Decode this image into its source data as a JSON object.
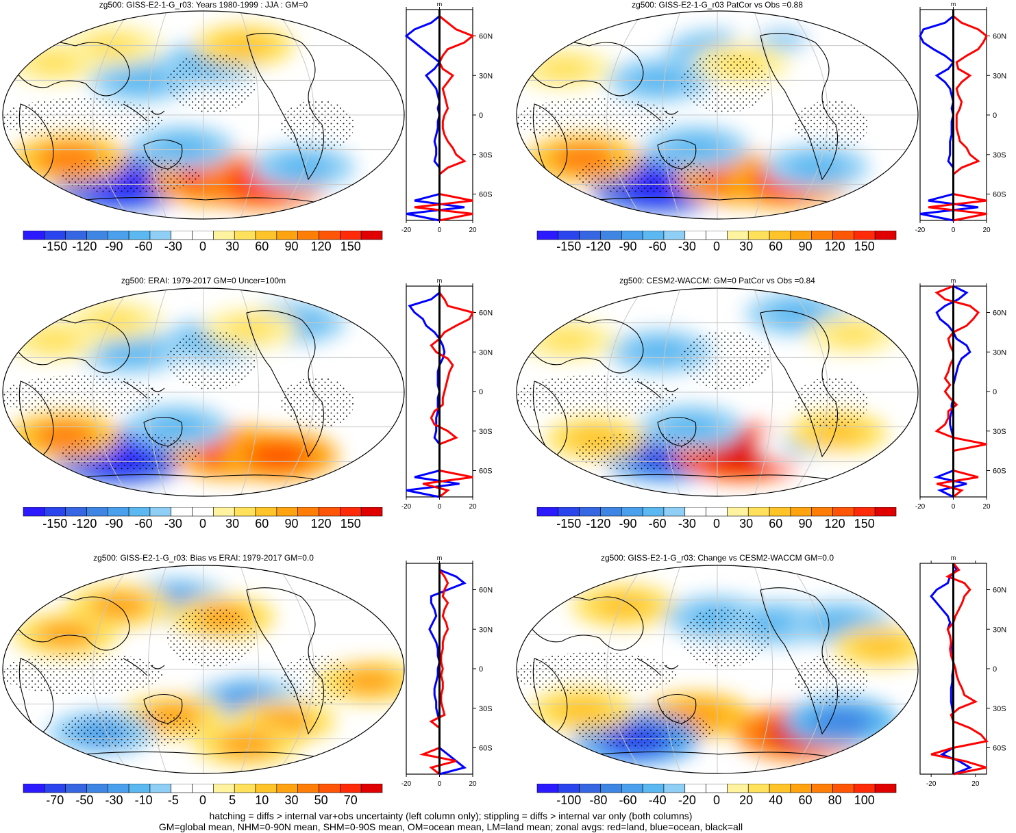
{
  "footer": {
    "line1": "hatching = diffs > internal var+obs uncertainty (left column only); stippling = diffs > internal var only (both columns)",
    "line2": "GM=global mean, NHM=0-90N mean, SHM=0-90S mean, OM=ocean mean, LM=land mean; zonal avgs: red=land, blue=ocean, black=all"
  },
  "colors": {
    "land": "#ff0000",
    "ocean": "#0000ff",
    "all": "#000000",
    "scale": [
      "#2b1aff",
      "#2a44ee",
      "#3766e2",
      "#3f86e4",
      "#4aa0ec",
      "#5bb8f1",
      "#8fcff5",
      "#ffffff",
      "#ffffff",
      "#fff3a0",
      "#ffe15c",
      "#ffc42a",
      "#ffa310",
      "#ff7e08",
      "#ff5506",
      "#ff2a08",
      "#e00000"
    ]
  },
  "chart_data": [
    {
      "type": "heatmap",
      "title": "zg500: GISS-E2-1-G_r03: Years 1980-1999 : JJA : GM=0",
      "colorbar_ticks": [
        "-150",
        "-120",
        "-90",
        "-60",
        "-30",
        "0",
        "30",
        "60",
        "90",
        "120",
        "150"
      ],
      "profile_x_ticks": [
        "-20",
        "0",
        "20"
      ],
      "profile_y_ticks": [
        "60N",
        "30N",
        "0",
        "30S",
        "60S"
      ],
      "profile_xlabel": "m",
      "profile_xlim": [
        -20,
        20
      ],
      "anomalies": [
        {
          "lon": 60,
          "lat": -58,
          "value": -150
        },
        {
          "lon": 160,
          "lat": -55,
          "value": 120
        },
        {
          "lon": 215,
          "lat": -58,
          "value": 130
        },
        {
          "lon": 20,
          "lat": -38,
          "value": 90
        },
        {
          "lon": 130,
          "lat": -28,
          "value": -60
        },
        {
          "lon": 90,
          "lat": 30,
          "value": -60
        },
        {
          "lon": 155,
          "lat": 45,
          "value": -50
        },
        {
          "lon": 250,
          "lat": -45,
          "value": -60
        },
        {
          "lon": 195,
          "lat": 60,
          "value": 50
        },
        {
          "lon": 0,
          "lat": 45,
          "value": 40
        },
        {
          "lon": 50,
          "lat": 60,
          "value": 40
        }
      ],
      "zonal": {
        "lat": [
          80,
          75,
          70,
          65,
          60,
          55,
          50,
          45,
          40,
          35,
          30,
          25,
          20,
          15,
          10,
          5,
          0,
          -5,
          -10,
          -15,
          -20,
          -25,
          -30,
          -35,
          -40,
          -45,
          -50,
          -55,
          -60,
          -65,
          -70,
          -75,
          -80
        ],
        "land": [
          0,
          0,
          5,
          10,
          20,
          15,
          5,
          2,
          0,
          2,
          8,
          5,
          2,
          3,
          4,
          5,
          3,
          2,
          2,
          3,
          5,
          8,
          10,
          15,
          5,
          0,
          0,
          0,
          0,
          25,
          -15,
          30,
          0
        ],
        "ocean": [
          0,
          0,
          -5,
          -15,
          -20,
          -15,
          -10,
          -5,
          0,
          -3,
          -8,
          -5,
          -2,
          -1,
          0,
          -1,
          0,
          -1,
          -1,
          -2,
          -3,
          -2,
          -2,
          -3,
          0,
          0,
          0,
          0,
          0,
          -15,
          15,
          -25,
          0
        ]
      }
    },
    {
      "type": "heatmap",
      "title": "zg500: GISS-E2-1-G_r03 PatCor vs Obs =0.88",
      "colorbar_ticks": [
        "-150",
        "-120",
        "-90",
        "-60",
        "-30",
        "0",
        "30",
        "60",
        "90",
        "120",
        "150"
      ],
      "profile_x_ticks": [
        "-20",
        "0",
        "20"
      ],
      "profile_y_ticks": [
        "60N",
        "30N",
        "0",
        "30S",
        "60S"
      ],
      "profile_xlabel": "m",
      "profile_xlim": [
        -20,
        20
      ],
      "anomalies": [
        {
          "lon": 85,
          "lat": -60,
          "value": -150
        },
        {
          "lon": 170,
          "lat": -55,
          "value": 110
        },
        {
          "lon": 225,
          "lat": -58,
          "value": 120
        },
        {
          "lon": 20,
          "lat": -38,
          "value": 90
        },
        {
          "lon": 130,
          "lat": -28,
          "value": -60
        },
        {
          "lon": 95,
          "lat": 30,
          "value": -60
        },
        {
          "lon": 150,
          "lat": 55,
          "value": -60
        },
        {
          "lon": 250,
          "lat": -45,
          "value": -60
        },
        {
          "lon": 225,
          "lat": 65,
          "value": -40
        },
        {
          "lon": 0,
          "lat": 40,
          "value": 40
        },
        {
          "lon": 175,
          "lat": 45,
          "value": 40
        }
      ],
      "zonal": {
        "lat": [
          80,
          75,
          70,
          65,
          60,
          55,
          50,
          45,
          40,
          35,
          30,
          25,
          20,
          15,
          10,
          5,
          0,
          -5,
          -10,
          -15,
          -20,
          -25,
          -30,
          -35,
          -40,
          -45,
          -50,
          -55,
          -60,
          -65,
          -70,
          -75,
          -80
        ],
        "land": [
          0,
          0,
          5,
          15,
          20,
          18,
          15,
          8,
          2,
          3,
          10,
          5,
          2,
          3,
          5,
          4,
          2,
          2,
          2,
          3,
          4,
          8,
          10,
          15,
          5,
          0,
          0,
          0,
          0,
          25,
          -15,
          25,
          0
        ],
        "ocean": [
          0,
          0,
          -5,
          -18,
          -20,
          -18,
          -12,
          -5,
          0,
          -3,
          -10,
          -5,
          -2,
          -1,
          0,
          -1,
          0,
          -1,
          -1,
          -1,
          -2,
          -2,
          -2,
          -3,
          0,
          0,
          0,
          0,
          0,
          -15,
          15,
          -20,
          0
        ]
      }
    },
    {
      "type": "heatmap",
      "title": "zg500: ERAI: 1979-2017 GM=0 Uncer=100m",
      "colorbar_ticks": [
        "-150",
        "-120",
        "-90",
        "-60",
        "-30",
        "0",
        "30",
        "60",
        "90",
        "120",
        "150"
      ],
      "profile_x_ticks": [
        "-20",
        "0",
        "20"
      ],
      "profile_y_ticks": [
        "60N",
        "30N",
        "0",
        "30S",
        "60S"
      ],
      "profile_xlabel": "m",
      "profile_xlim": [
        -20,
        20
      ],
      "anomalies": [
        {
          "lon": 60,
          "lat": -55,
          "value": -150
        },
        {
          "lon": 180,
          "lat": -52,
          "value": 120
        },
        {
          "lon": 230,
          "lat": -55,
          "value": 100
        },
        {
          "lon": 15,
          "lat": -38,
          "value": 80
        },
        {
          "lon": 125,
          "lat": -30,
          "value": -60
        },
        {
          "lon": 80,
          "lat": 35,
          "value": -60
        },
        {
          "lon": 160,
          "lat": 45,
          "value": -50
        },
        {
          "lon": 250,
          "lat": 60,
          "value": -60
        },
        {
          "lon": 200,
          "lat": 55,
          "value": 40
        },
        {
          "lon": 0,
          "lat": 45,
          "value": 40
        },
        {
          "lon": 50,
          "lat": 62,
          "value": 40
        }
      ],
      "zonal": {
        "lat": [
          80,
          75,
          70,
          65,
          60,
          55,
          50,
          45,
          40,
          35,
          30,
          25,
          20,
          15,
          10,
          5,
          0,
          -5,
          -10,
          -15,
          -20,
          -25,
          -30,
          -35,
          -40,
          -45,
          -50,
          -55,
          -60,
          -65,
          -70,
          -75,
          -80
        ],
        "land": [
          0,
          0,
          3,
          5,
          20,
          18,
          10,
          3,
          0,
          -5,
          -2,
          5,
          8,
          6,
          5,
          4,
          3,
          2,
          2,
          -3,
          -5,
          -3,
          5,
          10,
          0,
          0,
          0,
          0,
          0,
          20,
          -10,
          5,
          0
        ],
        "ocean": [
          0,
          0,
          -5,
          -18,
          -15,
          -10,
          -8,
          -3,
          0,
          2,
          3,
          2,
          0,
          -1,
          -1,
          -1,
          0,
          -1,
          -1,
          -1,
          -2,
          -2,
          -2,
          -3,
          0,
          0,
          0,
          0,
          0,
          -15,
          12,
          -20,
          0
        ]
      }
    },
    {
      "type": "heatmap",
      "title": "zg500: CESM2-WACCM: GM=0 PatCor vs Obs =0.84",
      "colorbar_ticks": [
        "-150",
        "-120",
        "-90",
        "-60",
        "-30",
        "0",
        "30",
        "60",
        "90",
        "120",
        "150"
      ],
      "profile_x_ticks": [
        "-20",
        "0",
        "20"
      ],
      "profile_y_ticks": [
        "60N",
        "30N",
        "0",
        "30S",
        "60S"
      ],
      "profile_xlabel": "m",
      "profile_xlim": [
        -20,
        20
      ],
      "anomalies": [
        {
          "lon": 95,
          "lat": -55,
          "value": -120
        },
        {
          "lon": 175,
          "lat": -52,
          "value": 150
        },
        {
          "lon": 125,
          "lat": -30,
          "value": -60
        },
        {
          "lon": 30,
          "lat": -40,
          "value": 50
        },
        {
          "lon": 95,
          "lat": 35,
          "value": -60
        },
        {
          "lon": 245,
          "lat": 68,
          "value": -60
        },
        {
          "lon": 240,
          "lat": -45,
          "value": -40
        },
        {
          "lon": 265,
          "lat": -35,
          "value": 50
        },
        {
          "lon": 0,
          "lat": 45,
          "value": 40
        },
        {
          "lon": 290,
          "lat": 50,
          "value": 30
        }
      ],
      "zonal": {
        "lat": [
          80,
          75,
          70,
          65,
          60,
          55,
          50,
          45,
          40,
          35,
          30,
          25,
          20,
          15,
          10,
          5,
          0,
          -5,
          -10,
          -15,
          -20,
          -25,
          -30,
          -35,
          -40,
          -45,
          -50,
          -55,
          -60,
          -65,
          -70,
          -75,
          -80
        ],
        "land": [
          0,
          -10,
          -5,
          10,
          15,
          12,
          8,
          0,
          -3,
          -2,
          0,
          0,
          -2,
          -3,
          -5,
          -2,
          -5,
          -2,
          2,
          -3,
          -3,
          -5,
          -10,
          0,
          20,
          0,
          0,
          0,
          0,
          15,
          -10,
          5,
          0
        ],
        "ocean": [
          0,
          8,
          3,
          -5,
          -10,
          -8,
          -3,
          0,
          2,
          8,
          10,
          5,
          3,
          2,
          1,
          0,
          0,
          0,
          -1,
          -1,
          -2,
          -2,
          -1,
          0,
          0,
          0,
          0,
          0,
          0,
          -10,
          8,
          -8,
          0
        ]
      }
    },
    {
      "type": "heatmap",
      "title": "zg500: GISS-E2-1-G_r03: Bias vs ERAI: 1979-2017 GM=0.0",
      "colorbar_ticks": [
        "-70",
        "-50",
        "-30",
        "-10",
        "-5",
        "0",
        "5",
        "10",
        "30",
        "50",
        "70"
      ],
      "profile_x_ticks": [
        "-20",
        "0",
        "20"
      ],
      "profile_y_ticks": [
        "60N",
        "30N",
        "0",
        "30S",
        "60S"
      ],
      "profile_xlabel": "m",
      "profile_xlim": [
        -20,
        20
      ],
      "anomalies": [
        {
          "lon": 120,
          "lat": 60,
          "value": -30
        },
        {
          "lon": 170,
          "lat": 45,
          "value": 30
        },
        {
          "lon": 60,
          "lat": 55,
          "value": 30
        },
        {
          "lon": 20,
          "lat": 30,
          "value": 30
        },
        {
          "lon": 130,
          "lat": 5,
          "value": -10
        },
        {
          "lon": 190,
          "lat": -25,
          "value": -30
        },
        {
          "lon": 120,
          "lat": -40,
          "value": 30
        },
        {
          "lon": 230,
          "lat": -45,
          "value": 30
        },
        {
          "lon": 40,
          "lat": -55,
          "value": -30
        },
        {
          "lon": 200,
          "lat": -65,
          "value": 30
        },
        {
          "lon": 270,
          "lat": 30,
          "value": -10
        },
        {
          "lon": 300,
          "lat": -10,
          "value": 30
        }
      ],
      "zonal": {
        "lat": [
          80,
          75,
          70,
          65,
          60,
          55,
          50,
          45,
          40,
          35,
          30,
          25,
          20,
          15,
          10,
          5,
          0,
          -5,
          -10,
          -15,
          -20,
          -25,
          -30,
          -35,
          -40,
          -45,
          -50,
          -55,
          -60,
          -65,
          -70,
          -75,
          -80
        ],
        "land": [
          0,
          0,
          3,
          5,
          3,
          2,
          5,
          3,
          2,
          4,
          5,
          3,
          2,
          2,
          1,
          1,
          2,
          1,
          2,
          2,
          1,
          1,
          2,
          3,
          -5,
          0,
          0,
          0,
          0,
          -10,
          10,
          -5,
          0
        ],
        "ocean": [
          0,
          0,
          10,
          15,
          5,
          -5,
          -5,
          -3,
          -2,
          -4,
          -6,
          -4,
          -2,
          -1,
          -1,
          0,
          -1,
          -1,
          -2,
          -3,
          -3,
          -2,
          -2,
          -1,
          0,
          0,
          0,
          0,
          0,
          5,
          10,
          15,
          0
        ]
      }
    },
    {
      "type": "heatmap",
      "title": "zg500: GISS-E2-1-G_r03: Change vs CESM2-WACCM GM=0.0",
      "colorbar_ticks": [
        "-100",
        "-80",
        "-60",
        "-40",
        "-20",
        "0",
        "20",
        "40",
        "60",
        "80",
        "100"
      ],
      "profile_x_ticks": [
        "-20",
        "20"
      ],
      "profile_y_ticks": [
        "60N",
        "30N",
        "0",
        "30S",
        "60S"
      ],
      "profile_xlabel": "m",
      "profile_xlim": [
        -30,
        30
      ],
      "anomalies": [
        {
          "lon": 50,
          "lat": 55,
          "value": 40
        },
        {
          "lon": 150,
          "lat": 45,
          "value": -40
        },
        {
          "lon": 210,
          "lat": 40,
          "value": -40
        },
        {
          "lon": 270,
          "lat": 40,
          "value": -40
        },
        {
          "lon": 130,
          "lat": -40,
          "value": 50
        },
        {
          "lon": 60,
          "lat": -60,
          "value": -80
        },
        {
          "lon": 240,
          "lat": -55,
          "value": 90
        },
        {
          "lon": 275,
          "lat": -45,
          "value": -60
        },
        {
          "lon": 20,
          "lat": -35,
          "value": 40
        },
        {
          "lon": 300,
          "lat": 20,
          "value": 30
        }
      ],
      "zonal": {
        "lat": [
          80,
          75,
          70,
          65,
          60,
          55,
          50,
          45,
          40,
          35,
          30,
          25,
          20,
          15,
          10,
          5,
          0,
          -5,
          -10,
          -15,
          -20,
          -25,
          -30,
          -35,
          -40,
          -45,
          -50,
          -55,
          -60,
          -65,
          -70,
          -75,
          -80
        ],
        "land": [
          0,
          5,
          -5,
          10,
          15,
          10,
          8,
          5,
          2,
          0,
          -5,
          -3,
          -2,
          -3,
          -2,
          0,
          2,
          3,
          5,
          8,
          10,
          20,
          5,
          -2,
          0,
          15,
          25,
          30,
          0,
          -20,
          10,
          30,
          0
        ],
        "ocean": [
          0,
          3,
          -3,
          -5,
          -15,
          -20,
          -15,
          -10,
          -5,
          -3,
          -5,
          -3,
          -2,
          -1,
          0,
          0,
          0,
          -1,
          -1,
          -2,
          -2,
          -2,
          -1,
          0,
          0,
          0,
          0,
          0,
          0,
          -10,
          5,
          15,
          0
        ]
      }
    }
  ]
}
